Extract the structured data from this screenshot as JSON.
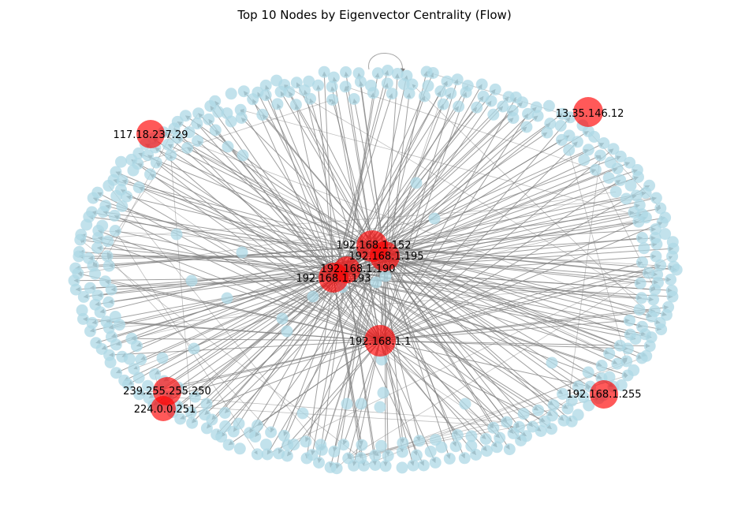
{
  "title": "Top 10 Nodes by Eigenvector Centrality (Flow)",
  "colors": {
    "node": "#add8e6",
    "top_node": "#ff0000",
    "edge": "#808080"
  },
  "top_nodes": [
    {
      "label": "192.168.1.152"
    },
    {
      "label": "192.168.1.195"
    },
    {
      "label": "192.168.1.190"
    },
    {
      "label": "192.168.1.193"
    },
    {
      "label": "192.168.1.1"
    },
    {
      "label": "13.35.146.12"
    },
    {
      "label": "117.18.237.29"
    },
    {
      "label": "239.255.255.250"
    },
    {
      "label": "224.0.0.251"
    },
    {
      "label": "192.168.1.255"
    }
  ]
}
